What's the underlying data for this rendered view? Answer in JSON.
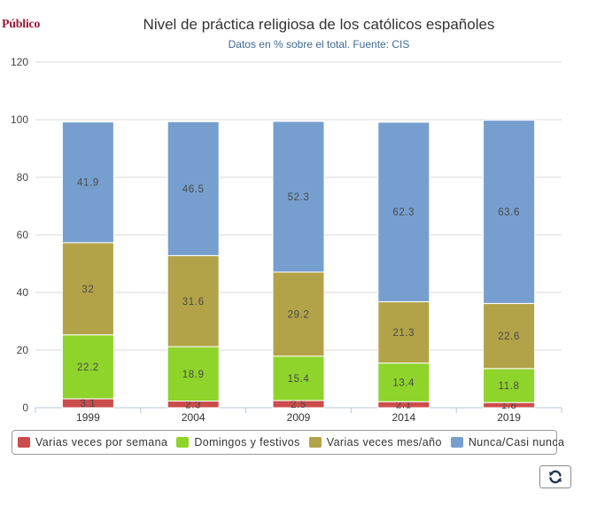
{
  "brand": {
    "name": "Público",
    "color": "#9c1b38"
  },
  "chart_data": {
    "type": "bar",
    "stacked": true,
    "title": "Nivel de práctica religiosa de los católicos españoles",
    "subtitle": "Datos en % sobre el total. Fuente: CIS",
    "categories": [
      "1999",
      "2004",
      "2009",
      "2014",
      "2019"
    ],
    "ylim": [
      0,
      120
    ],
    "yticks": [
      0,
      20,
      40,
      60,
      80,
      100,
      120
    ],
    "grid": true,
    "legend_position": "bottom",
    "series": [
      {
        "name": "Varias veces por semana",
        "color": "#cc4b4b",
        "values": [
          3.1,
          2.3,
          2.5,
          2.1,
          1.8
        ]
      },
      {
        "name": "Domingos y festivos",
        "color": "#8ed42b",
        "values": [
          22.2,
          18.9,
          15.4,
          13.4,
          11.8
        ]
      },
      {
        "name": "Varias veces mes/año",
        "color": "#b3a348",
        "values": [
          32,
          31.6,
          29.2,
          21.3,
          22.6
        ]
      },
      {
        "name": "Nunca/Casi nunca",
        "color": "#769fcf",
        "values": [
          41.9,
          46.5,
          52.3,
          62.3,
          63.6
        ]
      }
    ]
  },
  "controls": {
    "refresh_icon": "refresh-icon"
  }
}
